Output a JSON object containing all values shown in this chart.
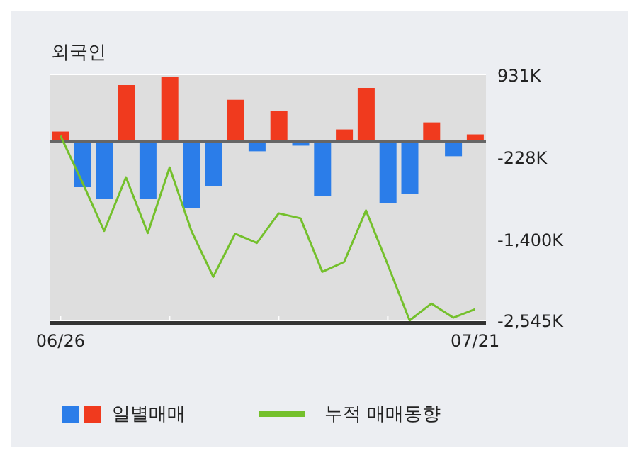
{
  "chart_data": {
    "type": "bar",
    "title": "외국인",
    "categories": [
      "06/26",
      null,
      null,
      null,
      null,
      null,
      null,
      null,
      null,
      null,
      null,
      null,
      null,
      null,
      null,
      null,
      null,
      null,
      null,
      "07/21"
    ],
    "series": [
      {
        "name": "일별매매",
        "colors": [
          "#f03a1e",
          "#2b7de9",
          "#2b7de9",
          "#f03a1e",
          "#2b7de9",
          "#f03a1e",
          "#2b7de9",
          "#2b7de9",
          "#f03a1e",
          "#2b7de9",
          "#f03a1e",
          "#2b7de9",
          "#2b7de9",
          "#f03a1e",
          "#f03a1e",
          "#2b7de9",
          "#2b7de9",
          "#f03a1e",
          "#2b7de9",
          "#f03a1e"
        ],
        "values": [
          140,
          -650,
          -810,
          800,
          -810,
          920,
          -940,
          -630,
          590,
          -140,
          430,
          -60,
          -780,
          170,
          760,
          -870,
          -750,
          270,
          -210,
          100
        ]
      },
      {
        "name": "누적 매매동향",
        "type": "line",
        "color": "#74c02c",
        "values": [
          80,
          -580,
          -1270,
          -510,
          -1300,
          -370,
          -1270,
          -1920,
          -1310,
          -1440,
          -1020,
          -1090,
          -1850,
          -1710,
          -980,
          -1750,
          -2540,
          -2300,
          -2500,
          -2380
        ]
      }
    ],
    "ylim": [
      -2580,
      940
    ],
    "yticks": [
      {
        "value": 931,
        "label": "931K"
      },
      {
        "value": -228,
        "label": "-228K"
      },
      {
        "value": -1400,
        "label": "-1,400K"
      },
      {
        "value": -2545,
        "label": "-2,545K"
      }
    ],
    "grid": true,
    "legend": "bottom",
    "marker": "none"
  }
}
